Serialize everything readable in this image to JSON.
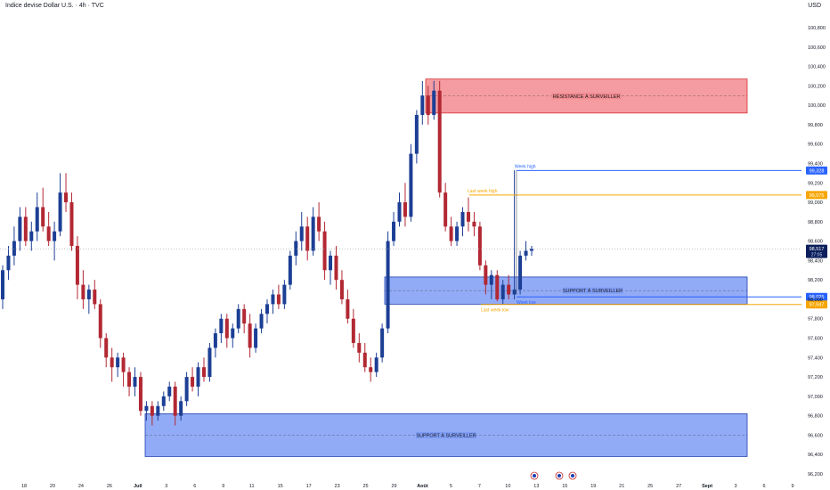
{
  "header": {
    "title": "Indice devise Dollar U.S. · 4h · TVC",
    "currency": "USD"
  },
  "chart_data": {
    "type": "candlestick",
    "y_range": [
      96.2,
      100.9
    ],
    "y_ticks": [
      {
        "v": 100.8,
        "label": "100,800"
      },
      {
        "v": 100.6,
        "label": "100,600"
      },
      {
        "v": 100.4,
        "label": "100,400"
      },
      {
        "v": 100.2,
        "label": "100,200"
      },
      {
        "v": 100.0,
        "label": "100,000"
      },
      {
        "v": 99.8,
        "label": "99,800"
      },
      {
        "v": 99.6,
        "label": "99,600"
      },
      {
        "v": 99.4,
        "label": "99,400"
      },
      {
        "v": 99.2,
        "label": "99,200"
      },
      {
        "v": 99.0,
        "label": "99,000"
      },
      {
        "v": 98.8,
        "label": "98,800"
      },
      {
        "v": 98.6,
        "label": "98,600"
      },
      {
        "v": 98.4,
        "label": "98,400"
      },
      {
        "v": 98.2,
        "label": "98,200"
      },
      {
        "v": 98.0,
        "label": "98,000"
      },
      {
        "v": 97.8,
        "label": "97,800"
      },
      {
        "v": 97.6,
        "label": "97,600"
      },
      {
        "v": 97.4,
        "label": "97,400"
      },
      {
        "v": 97.2,
        "label": "97,200"
      },
      {
        "v": 97.0,
        "label": "97,000"
      },
      {
        "v": 96.8,
        "label": "96,800"
      },
      {
        "v": 96.6,
        "label": "96,600"
      },
      {
        "v": 96.4,
        "label": "96,400"
      },
      {
        "v": 96.2,
        "label": "96,200"
      }
    ],
    "x_labels": [
      "18",
      "20",
      "24",
      "26",
      "Juil",
      "3",
      "6",
      "9",
      "11",
      "15",
      "17",
      "23",
      "25",
      "29",
      "Août",
      "5",
      "7",
      "10",
      "13",
      "15",
      "19",
      "21",
      "25",
      "27",
      "Sept",
      "3",
      "6",
      "9"
    ],
    "x_labels_bold": [
      "Juil",
      "Août",
      "Sept"
    ],
    "candles": [
      [
        98.0,
        98.35,
        97.9,
        98.3
      ],
      [
        98.3,
        98.55,
        98.2,
        98.45
      ],
      [
        98.45,
        98.75,
        98.35,
        98.6
      ],
      [
        98.6,
        98.95,
        98.5,
        98.85
      ],
      [
        98.85,
        98.95,
        98.55,
        98.6
      ],
      [
        98.6,
        98.8,
        98.5,
        98.7
      ],
      [
        98.7,
        99.1,
        98.6,
        98.95
      ],
      [
        98.95,
        99.15,
        98.7,
        98.75
      ],
      [
        98.75,
        98.9,
        98.55,
        98.6
      ],
      [
        98.6,
        98.8,
        98.4,
        98.7
      ],
      [
        98.7,
        99.3,
        98.65,
        99.1
      ],
      [
        99.1,
        99.3,
        98.9,
        99.0
      ],
      [
        99.0,
        99.1,
        98.5,
        98.55
      ],
      [
        98.55,
        98.65,
        98.0,
        98.15
      ],
      [
        98.15,
        98.3,
        97.9,
        98.0
      ],
      [
        98.0,
        98.15,
        97.85,
        98.1
      ],
      [
        98.1,
        98.2,
        97.9,
        97.95
      ],
      [
        97.95,
        98.0,
        97.5,
        97.6
      ],
      [
        97.6,
        97.65,
        97.3,
        97.4
      ],
      [
        97.4,
        97.5,
        97.15,
        97.3
      ],
      [
        97.3,
        97.45,
        97.2,
        97.4
      ],
      [
        97.4,
        97.45,
        97.1,
        97.25
      ],
      [
        97.25,
        97.3,
        97.0,
        97.1
      ],
      [
        97.1,
        97.3,
        97.0,
        97.2
      ],
      [
        97.2,
        97.25,
        96.8,
        96.85
      ],
      [
        96.85,
        96.95,
        96.75,
        96.9
      ],
      [
        96.9,
        96.95,
        96.7,
        96.8
      ],
      [
        96.8,
        96.95,
        96.75,
        96.9
      ],
      [
        96.9,
        97.05,
        96.85,
        97.0
      ],
      [
        97.0,
        97.15,
        96.95,
        97.1
      ],
      [
        97.1,
        97.15,
        96.7,
        96.8
      ],
      [
        96.8,
        97.0,
        96.75,
        96.95
      ],
      [
        96.95,
        97.25,
        96.9,
        97.2
      ],
      [
        97.2,
        97.3,
        97.05,
        97.1
      ],
      [
        97.1,
        97.35,
        97.0,
        97.3
      ],
      [
        97.3,
        97.4,
        97.15,
        97.2
      ],
      [
        97.2,
        97.55,
        97.15,
        97.5
      ],
      [
        97.5,
        97.7,
        97.4,
        97.65
      ],
      [
        97.65,
        97.85,
        97.55,
        97.8
      ],
      [
        97.8,
        97.85,
        97.5,
        97.6
      ],
      [
        97.6,
        97.75,
        97.5,
        97.7
      ],
      [
        97.7,
        97.95,
        97.65,
        97.9
      ],
      [
        97.9,
        97.95,
        97.65,
        97.75
      ],
      [
        97.75,
        97.85,
        97.4,
        97.5
      ],
      [
        97.5,
        97.75,
        97.45,
        97.7
      ],
      [
        97.7,
        97.9,
        97.65,
        97.85
      ],
      [
        97.85,
        98.0,
        97.75,
        97.95
      ],
      [
        97.95,
        98.1,
        97.85,
        98.05
      ],
      [
        98.05,
        98.15,
        97.9,
        97.95
      ],
      [
        97.95,
        98.2,
        97.9,
        98.15
      ],
      [
        98.15,
        98.5,
        98.1,
        98.45
      ],
      [
        98.45,
        98.7,
        98.35,
        98.6
      ],
      [
        98.6,
        98.9,
        98.5,
        98.75
      ],
      [
        98.75,
        98.85,
        98.4,
        98.5
      ],
      [
        98.5,
        98.95,
        98.45,
        98.85
      ],
      [
        98.85,
        99.0,
        98.6,
        98.7
      ],
      [
        98.7,
        98.8,
        98.2,
        98.3
      ],
      [
        98.3,
        98.5,
        98.15,
        98.45
      ],
      [
        98.45,
        98.55,
        98.1,
        98.2
      ],
      [
        98.2,
        98.3,
        97.95,
        98.0
      ],
      [
        98.0,
        98.1,
        97.75,
        97.8
      ],
      [
        97.8,
        97.9,
        97.5,
        97.55
      ],
      [
        97.55,
        97.65,
        97.35,
        97.45
      ],
      [
        97.45,
        97.55,
        97.25,
        97.3
      ],
      [
        97.3,
        97.4,
        97.15,
        97.25
      ],
      [
        97.25,
        97.45,
        97.2,
        97.4
      ],
      [
        97.4,
        97.75,
        97.35,
        97.7
      ],
      [
        97.7,
        98.7,
        97.65,
        98.6
      ],
      [
        98.6,
        98.9,
        98.55,
        98.8
      ],
      [
        98.8,
        99.1,
        98.75,
        99.0
      ],
      [
        99.0,
        99.2,
        98.75,
        98.85
      ],
      [
        98.85,
        99.6,
        98.8,
        99.5
      ],
      [
        99.5,
        99.95,
        99.4,
        99.9
      ],
      [
        99.9,
        100.25,
        99.8,
        100.1
      ],
      [
        100.1,
        100.2,
        99.8,
        99.9
      ],
      [
        99.9,
        100.25,
        99.85,
        100.15
      ],
      [
        100.15,
        100.25,
        99.05,
        99.1
      ],
      [
        99.1,
        99.2,
        98.7,
        98.75
      ],
      [
        98.75,
        98.85,
        98.55,
        98.6
      ],
      [
        98.6,
        98.8,
        98.55,
        98.75
      ],
      [
        98.75,
        98.95,
        98.65,
        98.9
      ],
      [
        98.9,
        99.05,
        98.7,
        98.8
      ],
      [
        98.8,
        98.9,
        98.65,
        98.75
      ],
      [
        98.75,
        98.8,
        98.3,
        98.35
      ],
      [
        98.35,
        98.4,
        98.05,
        98.15
      ],
      [
        98.15,
        98.3,
        98.0,
        98.25
      ],
      [
        98.25,
        98.3,
        97.98,
        98.0
      ],
      [
        98.0,
        98.2,
        97.95,
        98.15
      ],
      [
        98.15,
        98.25,
        98.0,
        98.05
      ],
      [
        98.05,
        99.33,
        98.0,
        98.1
      ],
      [
        98.1,
        98.5,
        98.05,
        98.45
      ],
      [
        98.45,
        98.6,
        98.4,
        98.5
      ],
      [
        98.5,
        98.55,
        98.45,
        98.52
      ]
    ],
    "zones": [
      {
        "label": "RÉSISTANCE À SURVEILLER",
        "y1": 99.92,
        "y2": 100.27,
        "kind": "resistance"
      },
      {
        "label": "SUPPORT À SURVEILLER",
        "y1": 97.95,
        "y2": 98.23,
        "kind": "support"
      },
      {
        "label": "SUPPORT À SURVEILLER",
        "y1": 96.38,
        "y2": 96.82,
        "kind": "support"
      }
    ],
    "levels": [
      {
        "label": "Week high",
        "value": 99.328,
        "tag": "99,328",
        "color": "#2962ff"
      },
      {
        "label": "Last week high",
        "value": 99.075,
        "tag": "99,075",
        "color": "#f7a600"
      },
      {
        "label": "Week low",
        "value": 98.025,
        "tag": "98,025",
        "color": "#2962ff"
      },
      {
        "label": "Last week low",
        "value": 97.947,
        "tag": "97,947",
        "color": "#f7a600"
      }
    ],
    "last_price": {
      "value": 98.517,
      "tag": "98,517",
      "countdown": "27:05"
    },
    "colors": {
      "up": "#1c3f95",
      "down": "#b22833",
      "resistance_fill": "#f28b91",
      "support_fill": "#7f9cf5"
    }
  }
}
